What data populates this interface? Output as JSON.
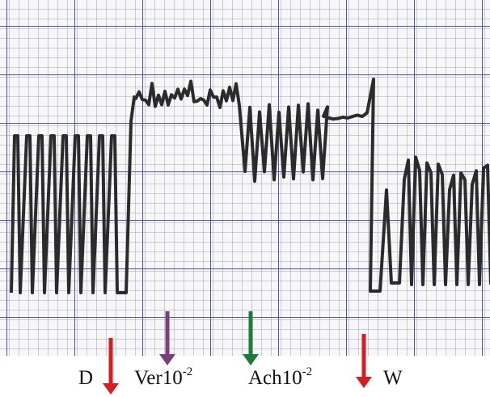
{
  "labels": [
    {
      "text": "D",
      "color": "#d42020"
    },
    {
      "text": "Ver10",
      "sup": "-2",
      "color": "#7a3f7e"
    },
    {
      "text": "Ach10",
      "sup": "-2",
      "color": "#1f7a3a"
    },
    {
      "text": "W",
      "color": "#d42020"
    }
  ]
}
